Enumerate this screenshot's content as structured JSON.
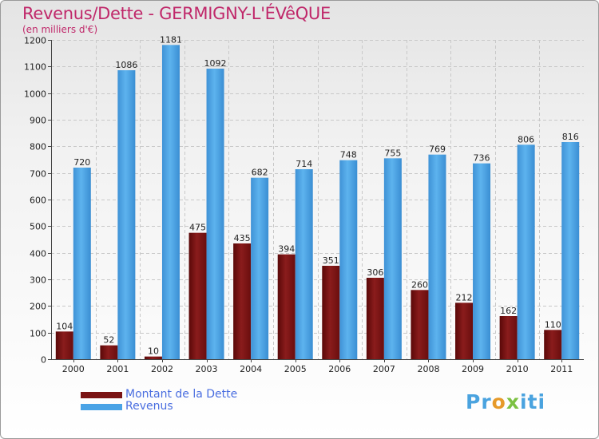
{
  "chart_data": {
    "type": "bar",
    "title": "Revenus/Dette - GERMIGNY-L'ÉVêQUE",
    "subtitle": "(en milliers d'€)",
    "xlabel": "",
    "ylabel": "",
    "ylim": [
      0,
      1200
    ],
    "yticks": [
      0,
      100,
      200,
      300,
      400,
      500,
      600,
      700,
      800,
      900,
      1000,
      1100,
      1200
    ],
    "grid": true,
    "legend_position": "bottom-left",
    "categories": [
      "2000",
      "2001",
      "2002",
      "2003",
      "2004",
      "2005",
      "2006",
      "2007",
      "2008",
      "2009",
      "2010",
      "2011"
    ],
    "series": [
      {
        "name": "Montant de la Dette",
        "color": "#7a1414",
        "values": [
          104,
          52,
          10,
          475,
          435,
          394,
          351,
          306,
          260,
          212,
          162,
          110
        ]
      },
      {
        "name": "Revenus",
        "color": "#4aa3e6",
        "values": [
          720,
          1086,
          1181,
          1092,
          682,
          714,
          748,
          755,
          769,
          736,
          806,
          816
        ]
      }
    ]
  },
  "brand": {
    "part1": "Pr",
    "part2": "o",
    "part3": "x",
    "part4": "iti"
  }
}
